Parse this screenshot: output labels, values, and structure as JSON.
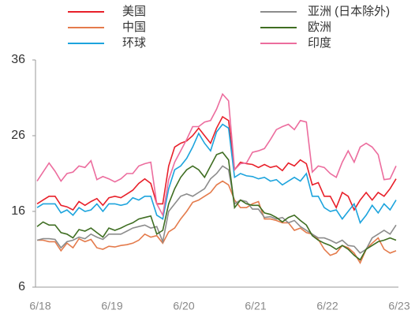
{
  "chart_data": {
    "type": "line",
    "categories": [
      "6/18",
      null,
      null,
      null,
      null,
      null,
      null,
      null,
      null,
      null,
      null,
      null,
      "6/19",
      null,
      null,
      null,
      null,
      null,
      null,
      null,
      null,
      null,
      null,
      null,
      "6/20",
      null,
      null,
      null,
      null,
      null,
      null,
      null,
      null,
      null,
      null,
      null,
      "6/21",
      null,
      null,
      null,
      null,
      null,
      null,
      null,
      null,
      null,
      null,
      null,
      "6/22",
      null,
      null,
      null,
      null,
      null,
      null,
      null,
      null,
      null,
      null,
      null,
      "6/23"
    ],
    "series": [
      {
        "name": "美国",
        "color": "#e8202a",
        "values": [
          17,
          17.5,
          18,
          18,
          16.8,
          16.6,
          16.2,
          17.3,
          16.8,
          17.3,
          17.7,
          16.8,
          17.8,
          18,
          17.8,
          18.3,
          18.8,
          19.7,
          20.3,
          19.7,
          17,
          17,
          22,
          24.5,
          25,
          25.3,
          26,
          27,
          26,
          25,
          27,
          28.5,
          28,
          21.5,
          22.5,
          22.3,
          22.2,
          21.8,
          22.2,
          21.8,
          22,
          21.4,
          22.4,
          22,
          22.8,
          22.3,
          19.5,
          19.8,
          18,
          18,
          16.5,
          18.5,
          18,
          16.2,
          17.5,
          18.5,
          17.5,
          18.5,
          18,
          19,
          20.3
        ]
      },
      {
        "name": "中国",
        "color": "#e47b4c",
        "values": [
          12.2,
          12.2,
          12,
          12,
          10.8,
          11.8,
          11.2,
          12.4,
          12,
          12.3,
          11.2,
          11,
          11.4,
          11.3,
          11.5,
          11.6,
          11.8,
          12.2,
          13,
          12.6,
          12.8,
          11.8,
          13.3,
          13.8,
          15,
          16,
          17.2,
          17.5,
          18,
          18.5,
          19.5,
          20,
          19.5,
          17.5,
          16.5,
          16.5,
          17,
          17.3,
          15,
          15,
          14.8,
          14.5,
          14.5,
          13.5,
          13.8,
          13.2,
          13,
          12.3,
          11,
          10.2,
          10.5,
          11.5,
          11.2,
          10.5,
          9.2,
          11,
          11.8,
          12.5,
          11,
          10.5,
          10.8
        ]
      },
      {
        "name": "环球",
        "color": "#1da4dd",
        "values": [
          16.5,
          17,
          17,
          17,
          15.8,
          16.2,
          15.5,
          16.5,
          16,
          16.2,
          17,
          16,
          17,
          17,
          16.8,
          17,
          17.8,
          17.5,
          18,
          18,
          15.5,
          15,
          19,
          21.5,
          22,
          23,
          24.5,
          26.3,
          25,
          24,
          26.5,
          27.5,
          27,
          20.5,
          21,
          20.7,
          20.6,
          20.3,
          20.5,
          20,
          20.2,
          19.5,
          20,
          20.5,
          20,
          21,
          18,
          18,
          16.5,
          16,
          16.2,
          15,
          16,
          17,
          14.5,
          15.5,
          16.8,
          15.8,
          17,
          16.2,
          17.5
        ]
      },
      {
        "name": "亚洲 (日本除外)",
        "color": "#8c8c8c",
        "values": [
          12.2,
          12.4,
          12.4,
          12.3,
          11.2,
          12,
          12.2,
          12.6,
          12.4,
          13,
          12.6,
          12.3,
          13,
          13,
          13,
          13.4,
          13.8,
          14,
          14.2,
          13.8,
          14,
          12,
          16,
          17,
          18,
          18.3,
          18,
          18.5,
          19,
          20.3,
          21,
          22,
          21.5,
          17,
          17.5,
          17.3,
          16.3,
          16.3,
          15.2,
          15.3,
          15,
          15.2,
          14.5,
          14.8,
          14,
          13.5,
          13,
          12.5,
          12.5,
          12.2,
          11.8,
          12.2,
          11.5,
          11.4,
          10.5,
          11,
          12.5,
          13,
          13.5,
          13,
          14.2
        ]
      },
      {
        "name": "欧洲",
        "color": "#3f6e22",
        "values": [
          14,
          14.6,
          14.2,
          14.2,
          13.2,
          13,
          12.5,
          13.6,
          13.4,
          13.8,
          13.2,
          12.6,
          13.8,
          13.5,
          13.8,
          14.2,
          14.5,
          15,
          15.2,
          15.4,
          13,
          13.5,
          17,
          19,
          20.5,
          21.5,
          22,
          21.5,
          20.5,
          22,
          23.5,
          23.8,
          22.8,
          16.5,
          17.5,
          17,
          16.8,
          16.8,
          15.8,
          15.6,
          15.2,
          14.6,
          15.2,
          15.5,
          14.8,
          14.2,
          12.8,
          12.2,
          11.8,
          11.5,
          11,
          11.5,
          11,
          10.2,
          9.6,
          11,
          11.5,
          12,
          12.2,
          12.5,
          12.2
        ]
      },
      {
        "name": "印度",
        "color": "#ec6d9e",
        "values": [
          20,
          21.2,
          22.4,
          21.3,
          20,
          21,
          21.2,
          22,
          21.8,
          22.7,
          20.2,
          20.6,
          20.3,
          19.9,
          20.3,
          21,
          21,
          22,
          22.3,
          22.5,
          17,
          15.5,
          20.2,
          22.5,
          24,
          25.5,
          27.2,
          27.2,
          27.8,
          28,
          29.5,
          31.5,
          30.6,
          21.5,
          22.3,
          22.4,
          23.8,
          24,
          24.3,
          25.5,
          26.8,
          27.2,
          27.5,
          26.8,
          28,
          27.8,
          21.2,
          22,
          21.8,
          21,
          20.5,
          22.5,
          24,
          22.5,
          24.5,
          25,
          24.5,
          23.5,
          20.2,
          20.3,
          22
        ]
      }
    ],
    "ylim": [
      6,
      36
    ],
    "yticks": [
      6,
      16,
      26,
      36
    ]
  }
}
